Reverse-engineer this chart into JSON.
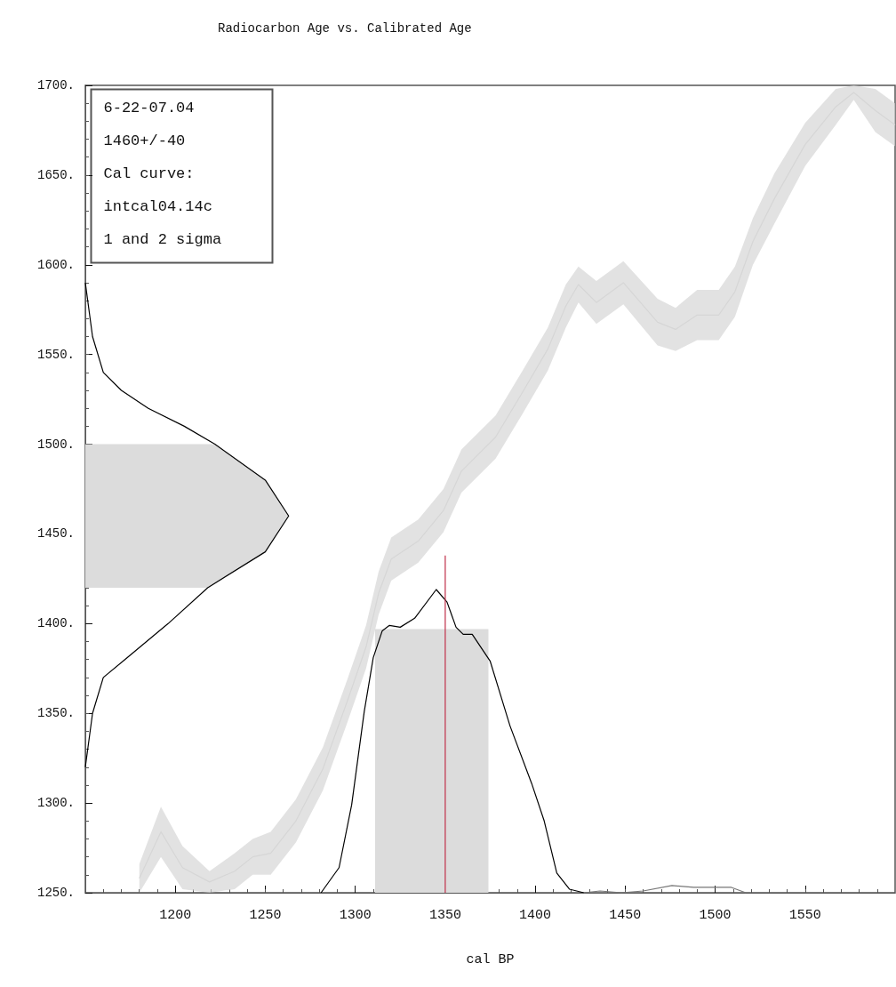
{
  "chart_data": {
    "type": "line",
    "title": "Radiocarbon Age vs. Calibrated Age",
    "xlabel": "cal BP",
    "marker": "none",
    "annotations": [
      "6-22-07.04",
      "1460+/-40",
      "Cal curve:",
      "intcal04.14c",
      "1 and 2 sigma"
    ],
    "xlim": [
      1150,
      1600
    ],
    "xticks": [
      1200,
      1250,
      1300,
      1350,
      1400,
      1450,
      1500,
      1550
    ],
    "ylim": [
      1250,
      1700
    ],
    "yticks": [
      {
        "value": 1250,
        "label": "1250."
      },
      {
        "value": 1300,
        "label": "1300."
      },
      {
        "value": 1350,
        "label": "1350."
      },
      {
        "value": 1400,
        "label": "1400."
      },
      {
        "value": 1450,
        "label": "1450."
      },
      {
        "value": 1500,
        "label": "1500."
      },
      {
        "value": 1550,
        "label": "1550."
      },
      {
        "value": 1600,
        "label": "1600."
      },
      {
        "value": 1650,
        "label": "1650."
      },
      {
        "value": 1700,
        "label": "1700."
      }
    ],
    "series": [
      {
        "color": "#d6d6d6",
        "x": [
          1180,
          1192,
          1204,
          1219,
          1233,
          1243,
          1253,
          1267,
          1282,
          1296,
          1306,
          1313,
          1320,
          1335,
          1349,
          1359,
          1378,
          1393,
          1407,
          1417,
          1424,
          1434,
          1449,
          1468,
          1478,
          1490,
          1502,
          1511,
          1521,
          1533,
          1550,
          1567,
          1577,
          1589,
          1600
        ],
        "values": [
          1258,
          1284,
          1264,
          1256,
          1262,
          1270,
          1272,
          1290,
          1319,
          1358,
          1387,
          1417,
          1436,
          1446,
          1463,
          1485,
          1504,
          1529,
          1553,
          1577,
          1589,
          1579,
          1590,
          1568,
          1564,
          1572,
          1572,
          1585,
          1613,
          1637,
          1667,
          1688,
          1696,
          1686,
          1678
        ],
        "lower": [
          1250,
          1270,
          1252,
          1250,
          1252,
          1260,
          1260,
          1278,
          1307,
          1346,
          1375,
          1405,
          1424,
          1434,
          1451,
          1473,
          1492,
          1517,
          1541,
          1565,
          1579,
          1567,
          1578,
          1555,
          1552,
          1558,
          1558,
          1571,
          1600,
          1623,
          1655,
          1678,
          1692,
          1674,
          1666
        ],
        "upper": [
          1266,
          1298,
          1276,
          1262,
          1272,
          1280,
          1284,
          1302,
          1331,
          1370,
          1399,
          1429,
          1448,
          1458,
          1475,
          1497,
          1516,
          1541,
          1565,
          1589,
          1599,
          1591,
          1602,
          1581,
          1576,
          1586,
          1586,
          1599,
          1626,
          1651,
          1679,
          1698,
          1700,
          1698,
          1690
        ]
      },
      {
        "type": "area",
        "color": "#dcdcdc",
        "x": [
          1150,
          1222,
          1250,
          1263,
          1250,
          1218,
          1150
        ],
        "values": [
          1500,
          1500,
          1480,
          1460,
          1440,
          1420,
          1420
        ]
      },
      {
        "type": "area",
        "color": "#dcdcdc",
        "x": [
          1311,
          1311,
          1374,
          1374
        ],
        "values": [
          1250,
          1397,
          1397,
          1250
        ]
      },
      {
        "color": "#000000",
        "x": [
          1150,
          1154,
          1160,
          1170,
          1185,
          1205,
          1222,
          1250,
          1263,
          1250,
          1218,
          1196,
          1172,
          1160,
          1154,
          1150
        ],
        "values": [
          1590,
          1560,
          1540,
          1530,
          1520,
          1510,
          1500,
          1480,
          1460,
          1440,
          1420,
          1400,
          1380,
          1370,
          1350,
          1320
        ]
      },
      {
        "color": "#000000",
        "x": [
          1281,
          1291,
          1298,
          1305,
          1310,
          1315,
          1319,
          1325,
          1333,
          1345,
          1351,
          1356,
          1360,
          1365,
          1375,
          1386,
          1398,
          1405,
          1412,
          1419,
          1427
        ],
        "values": [
          1250,
          1264,
          1299,
          1351,
          1381,
          1396,
          1399,
          1398,
          1403,
          1419,
          1412,
          1398,
          1394,
          1394,
          1379,
          1343,
          1311,
          1290,
          1261,
          1252,
          1250
        ]
      },
      {
        "color": "#777777",
        "x": [
          1427,
          1436,
          1448,
          1460,
          1476,
          1488,
          1503,
          1509,
          1517
        ],
        "values": [
          1250,
          1251,
          1250,
          1251,
          1254,
          1253,
          1253,
          1253,
          1250
        ]
      },
      {
        "color": "#c0304a",
        "x": [
          1350,
          1350
        ],
        "values": [
          1250,
          1438
        ]
      }
    ]
  }
}
